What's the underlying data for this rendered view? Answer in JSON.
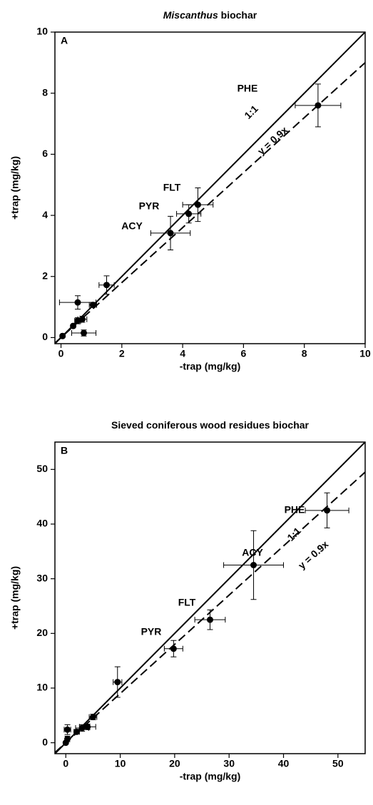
{
  "chart_data": [
    {
      "type": "scatter",
      "panel": "A",
      "title_italic": "Miscanthus",
      "title": "biochar",
      "xlabel": "-trap (mg/kg)",
      "ylabel": "+trap (mg/kg)",
      "xlim": [
        -0.2,
        10
      ],
      "ylim": [
        -0.2,
        10
      ],
      "xticks": [
        0,
        2,
        4,
        6,
        8,
        10
      ],
      "yticks": [
        0,
        2,
        4,
        6,
        8,
        10
      ],
      "color": "#000000",
      "x": [
        8.45,
        4.5,
        4.2,
        3.6,
        1.5,
        0.55,
        1.05,
        0.7,
        0.55,
        0.4,
        0.75,
        0.05
      ],
      "values": [
        7.6,
        4.35,
        4.05,
        3.42,
        1.72,
        1.15,
        1.07,
        0.6,
        0.55,
        0.38,
        0.15,
        0.05
      ],
      "xerr": [
        0.75,
        0.5,
        0.4,
        0.65,
        0.25,
        0.6,
        0.12,
        0.15,
        0.1,
        0.05,
        0.4,
        0.05
      ],
      "yerr": [
        0.7,
        0.55,
        0.3,
        0.55,
        0.3,
        0.22,
        0.08,
        0.1,
        0.1,
        0.05,
        0.1,
        0.05
      ],
      "annotations": [
        "PHE",
        "FLT",
        "PYR",
        "ACY"
      ],
      "lines": [
        {
          "label": "1:1",
          "slope": 1,
          "style": "solid"
        },
        {
          "label": "y = 0.9x",
          "slope": 0.9,
          "style": "dashed"
        }
      ]
    },
    {
      "type": "scatter",
      "panel": "B",
      "title": "Sieved coniferous wood residues biochar",
      "xlabel": "-trap (mg/kg)",
      "ylabel": "+trap (mg/kg)",
      "xlim": [
        -2,
        55
      ],
      "ylim": [
        -2,
        55
      ],
      "xticks": [
        0,
        10,
        20,
        30,
        40,
        50
      ],
      "yticks": [
        0,
        10,
        20,
        30,
        40,
        50
      ],
      "color": "#000000",
      "x": [
        48,
        34.5,
        26.5,
        19.8,
        9.5,
        5,
        4,
        3,
        2,
        0.3,
        0.3,
        0
      ],
      "values": [
        42.5,
        32.5,
        22.5,
        17.2,
        11.1,
        4.7,
        2.9,
        2.7,
        2,
        2.4,
        0.7,
        0
      ],
      "xerr": [
        4,
        5.5,
        2.8,
        1.7,
        0.8,
        0.7,
        1.5,
        1.2,
        0.5,
        0.6,
        0.3,
        0.2
      ],
      "yerr": [
        3.2,
        6.3,
        1.8,
        1.5,
        2.8,
        0.5,
        0.5,
        0.6,
        0.4,
        0.9,
        0.5,
        0.2
      ],
      "annotations": [
        "PHE",
        "ACY",
        "FLT",
        "PYR"
      ],
      "lines": [
        {
          "label": "1:1",
          "slope": 1,
          "style": "solid"
        },
        {
          "label": "y = 0.9x",
          "slope": 0.9,
          "style": "dashed"
        }
      ]
    }
  ]
}
